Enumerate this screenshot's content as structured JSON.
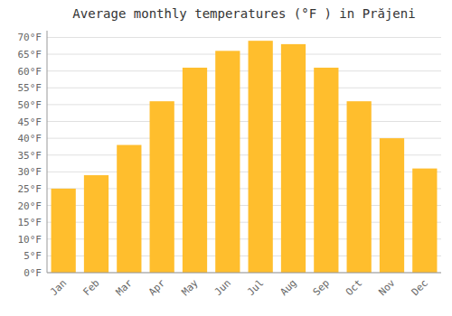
{
  "chart_data": {
    "type": "bar",
    "title": "Average monthly temperatures (°F ) in Prăjeni",
    "categories": [
      "Jan",
      "Feb",
      "Mar",
      "Apr",
      "May",
      "Jun",
      "Jul",
      "Aug",
      "Sep",
      "Oct",
      "Nov",
      "Dec"
    ],
    "values": [
      25,
      29,
      38,
      51,
      61,
      66,
      69,
      68,
      61,
      51,
      40,
      31
    ],
    "color": "#FFBE2D",
    "ylim": [
      0,
      72
    ],
    "yticks": [
      {
        "value": 0,
        "label": "0°F"
      },
      {
        "value": 5,
        "label": "5°F"
      },
      {
        "value": 10,
        "label": "10°F"
      },
      {
        "value": 15,
        "label": "15°F"
      },
      {
        "value": 20,
        "label": "20°F"
      },
      {
        "value": 25,
        "label": "25°F"
      },
      {
        "value": 30,
        "label": "30°F"
      },
      {
        "value": 35,
        "label": "35°F"
      },
      {
        "value": 40,
        "label": "40°F"
      },
      {
        "value": 45,
        "label": "45°F"
      },
      {
        "value": 50,
        "label": "50°F"
      },
      {
        "value": 55,
        "label": "55°F"
      },
      {
        "value": 60,
        "label": "60°F"
      },
      {
        "value": 65,
        "label": "65°F"
      },
      {
        "value": 70,
        "label": "70°F"
      }
    ],
    "grid": true
  }
}
